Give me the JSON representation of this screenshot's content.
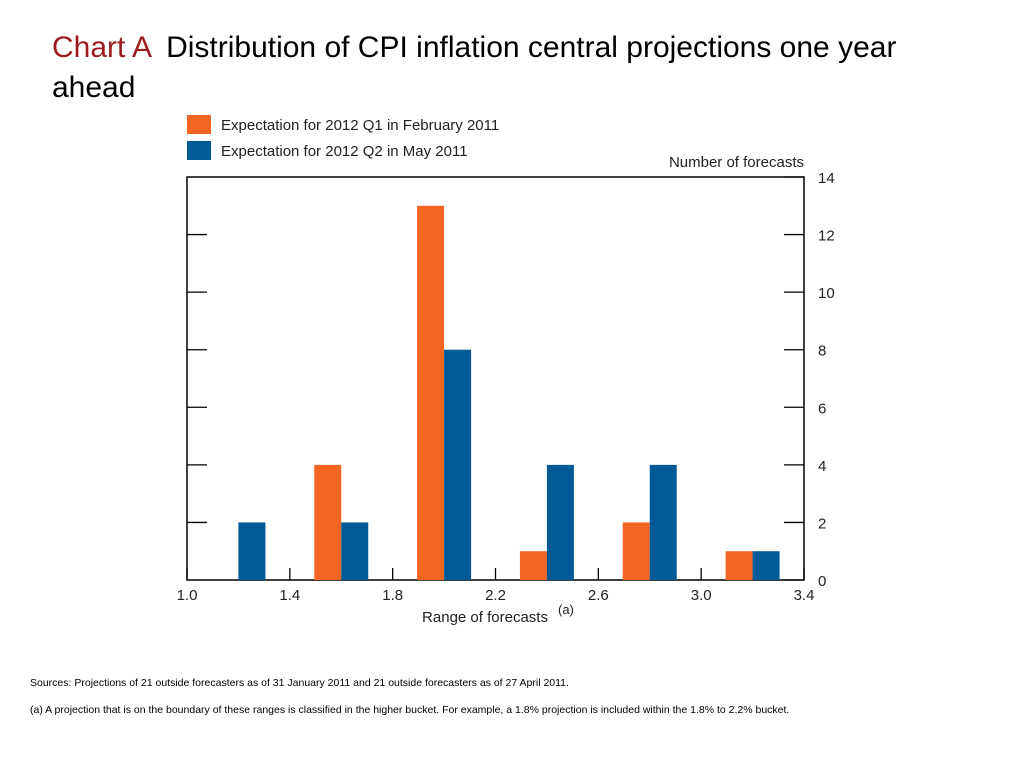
{
  "slide": {
    "chart_label": "Chart A",
    "chart_title": "Distribution of CPI inflation central projections one year ahead"
  },
  "chart_data": {
    "type": "bar",
    "title": "Distribution of CPI inflation central projections one year ahead",
    "xlabel": "Range of forecasts",
    "xlabel_superscript": "(a)",
    "ylabel": "Number of forecasts",
    "ylim": [
      0,
      14
    ],
    "yticks": [
      "0",
      "2",
      "4",
      "6",
      "8",
      "10",
      "12",
      "14"
    ],
    "xticks": [
      "1.0",
      "1.4",
      "1.8",
      "2.2",
      "2.6",
      "3.0",
      "3.4"
    ],
    "xlim": [
      1.0,
      3.4
    ],
    "bin_width": 0.4,
    "bin_starts": [
      1.0,
      1.4,
      1.8,
      2.2,
      2.6,
      3.0
    ],
    "series": [
      {
        "name": "Expectation for 2012 Q1 in February 2011",
        "color": "#f26522",
        "values": [
          0,
          4,
          13,
          1,
          2,
          1
        ]
      },
      {
        "name": "Expectation for 2012 Q2 in May 2011",
        "color": "#005a96",
        "values": [
          2,
          2,
          8,
          4,
          4,
          1
        ]
      }
    ],
    "legend_position": "top-left",
    "grid": false
  },
  "notes": {
    "sources": "Sources:  Projections of 21 outside forecasters as of 31 January 2011 and 21 outside forecasters as of 27 April 2011.",
    "footnote": "(a)  A projection that is on the boundary of these ranges is classified in the higher bucket.  For example, a 1.8% projection is included within the 1.8% to 2.2% bucket."
  }
}
